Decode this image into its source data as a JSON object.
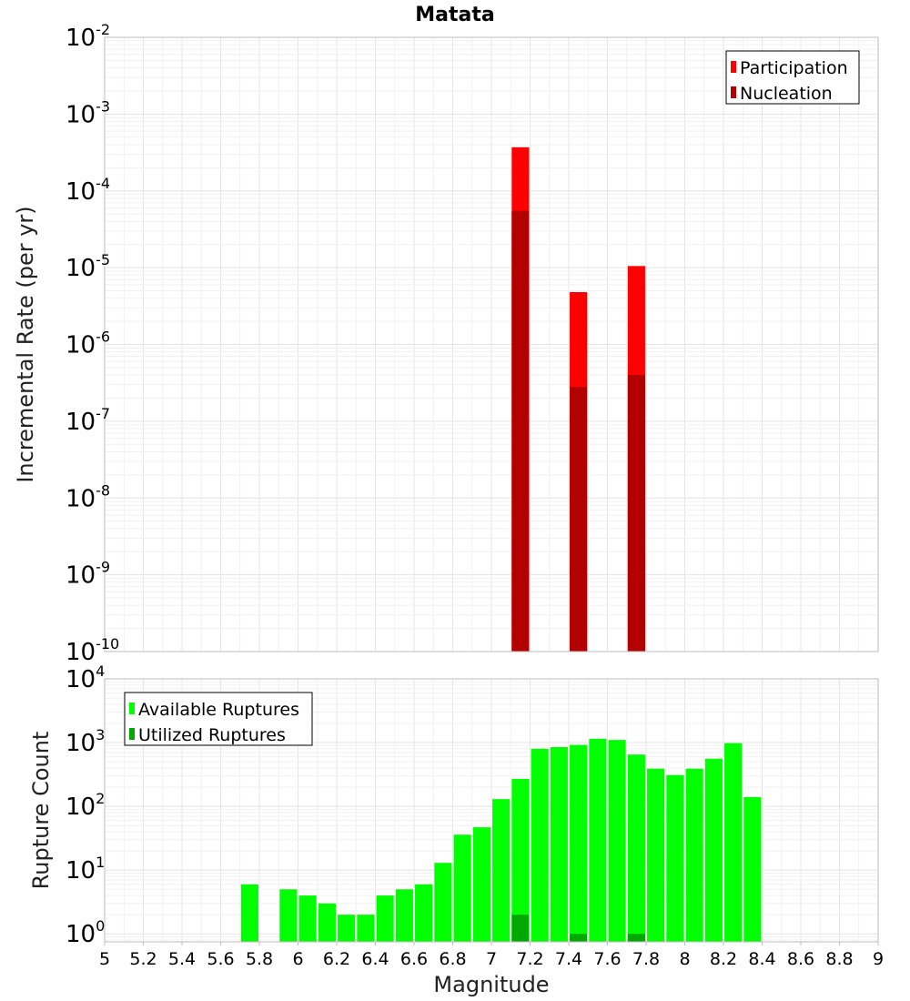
{
  "chart_data": [
    {
      "type": "bar",
      "title": "Matata",
      "xlabel": "",
      "ylabel": "Incremental Rate (per yr)",
      "xlim": [
        5,
        9
      ],
      "ylim": [
        1e-10,
        0.01
      ],
      "yscale": "log",
      "ytick_bases": [
        "10",
        "10",
        "10",
        "10",
        "10",
        "10",
        "10",
        "10",
        "10"
      ],
      "ytick_exponents": [
        "-10",
        "-9",
        "-8",
        "-7",
        "-6",
        "-5",
        "-4",
        "-3",
        "-2"
      ],
      "bar_width": 0.09,
      "grid": true,
      "legend_position": "top-right",
      "series": [
        {
          "name": "Participation",
          "color": "#ff0000",
          "x": [
            7.15,
            7.45,
            7.75
          ],
          "values": [
            0.00037,
            4.8e-06,
            1.05e-05
          ]
        },
        {
          "name": "Nucleation",
          "color": "#b30000",
          "x": [
            7.15,
            7.45,
            7.75
          ],
          "values": [
            5.5e-05,
            2.8e-07,
            4e-07
          ]
        }
      ]
    },
    {
      "type": "bar",
      "title": "",
      "xlabel": "Magnitude",
      "ylabel": "Rupture Count",
      "xlim": [
        5,
        9
      ],
      "ylim": [
        0.75,
        10000.0
      ],
      "yscale": "log",
      "ytick_bases": [
        "10",
        "10",
        "10",
        "10",
        "10"
      ],
      "ytick_exponents": [
        "0",
        "1",
        "2",
        "3",
        "4"
      ],
      "xticks": [
        "5",
        "5.2",
        "5.4",
        "5.6",
        "5.8",
        "6",
        "6.2",
        "6.4",
        "6.6",
        "6.8",
        "7",
        "7.2",
        "7.4",
        "7.6",
        "7.8",
        "8",
        "8.2",
        "8.4",
        "8.6",
        "8.8",
        "9"
      ],
      "bar_width": 0.09,
      "grid": true,
      "legend_position": "top-left",
      "series": [
        {
          "name": "Available Ruptures",
          "color": "#00ff00",
          "x": [
            5.75,
            5.95,
            6.05,
            6.15,
            6.25,
            6.35,
            6.45,
            6.55,
            6.65,
            6.75,
            6.85,
            6.95,
            7.05,
            7.15,
            7.25,
            7.35,
            7.45,
            7.55,
            7.65,
            7.75,
            7.85,
            7.95,
            8.05,
            8.15,
            8.25,
            8.35
          ],
          "values": [
            6,
            5,
            4,
            3,
            2,
            2,
            4,
            5,
            6,
            13,
            36,
            47,
            130,
            270,
            800,
            850,
            920,
            1150,
            1100,
            650,
            390,
            310,
            390,
            560,
            980,
            140
          ]
        },
        {
          "name": "Utilized Ruptures",
          "color": "#00a800",
          "x": [
            7.15,
            7.45,
            7.75
          ],
          "values": [
            2,
            1,
            1
          ]
        }
      ]
    }
  ]
}
